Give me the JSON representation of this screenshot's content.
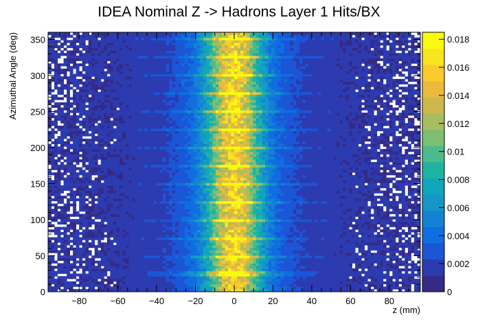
{
  "chart_data": {
    "type": "heatmap",
    "title": "IDEA Nominal Z -> Hadrons Layer 1 Hits/BX",
    "xlabel": "z (mm)",
    "ylabel": "Azimuthal Angle (deg)",
    "xlim": [
      -96,
      96
    ],
    "ylim": [
      0,
      360
    ],
    "x_ticks": [
      -80,
      -60,
      -40,
      -20,
      0,
      20,
      40,
      60,
      80
    ],
    "x_tick_labels": [
      "−80",
      "−60",
      "−40",
      "−20",
      "0",
      "20",
      "40",
      "60",
      "80"
    ],
    "y_ticks": [
      0,
      50,
      100,
      150,
      200,
      250,
      300,
      350
    ],
    "y_tick_labels": [
      "0",
      "50",
      "100",
      "150",
      "200",
      "250",
      "300",
      "350"
    ],
    "colorbar": {
      "min": 0,
      "max": 0.0185,
      "ticks": [
        0,
        0.002,
        0.004,
        0.006,
        0.008,
        0.01,
        0.012,
        0.014,
        0.016,
        0.018
      ],
      "tick_labels": [
        "0",
        "0.002",
        "0.004",
        "0.006",
        "0.008",
        "0.01",
        "0.012",
        "0.014",
        "0.016",
        "0.018"
      ]
    },
    "distribution": {
      "description_of_shape": "Gaussian in z centred at 0, roughly uniform in angle with bright horizontal streaks every ~25 deg; empty (white) bins scattered at |z| > 60",
      "z_center": 0,
      "z_sigma_mm": 9,
      "peak_value": 0.0175,
      "tail_value": 0.0012,
      "streak_angles_deg": [
        25,
        50,
        75,
        100,
        125,
        150,
        175,
        200,
        225,
        250,
        275,
        300,
        325,
        350
      ]
    },
    "palette": [
      "#352a87",
      "#2c3bb0",
      "#1a56d6",
      "#0f6ee0",
      "#1482d4",
      "#1696c8",
      "#10a7bc",
      "#1fb3a4",
      "#4bbb8c",
      "#7dbf72",
      "#a8bd5f",
      "#cdb84d",
      "#ebba3c",
      "#fbcb2b",
      "#f9e51f",
      "#f9fb0e"
    ]
  }
}
